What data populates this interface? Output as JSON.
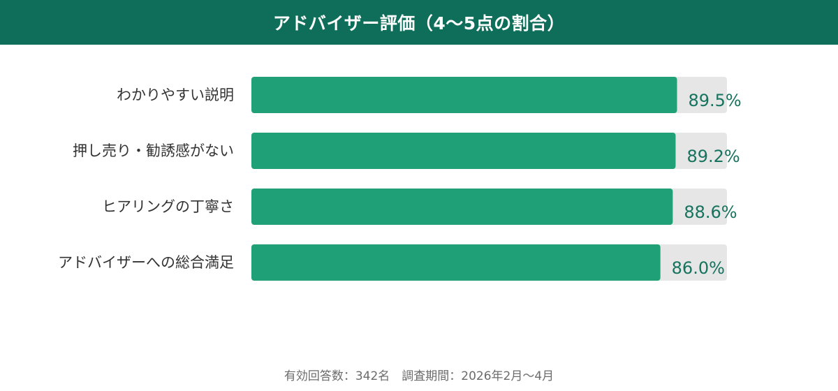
{
  "header": {
    "title": "アドバイザー評価（4〜5点の割合）"
  },
  "footer": {
    "note": "有効回答数：342名　調査期間：2026年2月〜4月"
  },
  "colors": {
    "header_bg": "#0f6e59",
    "bar": "#1fa076",
    "track": "#e6e6e6",
    "value_text": "#15735e"
  },
  "chart_data": {
    "type": "bar",
    "orientation": "horizontal",
    "title": "アドバイザー評価（4〜5点の割合）",
    "categories": [
      "わかりやすい説明",
      "押し売り・勧誘感がない",
      "ヒアリングの丁寧さ",
      "アドバイザーへの総合満足"
    ],
    "values": [
      89.5,
      89.2,
      88.6,
      86.0
    ],
    "value_labels": [
      "89.5%",
      "89.2%",
      "88.6%",
      "86.0%"
    ],
    "unit": "%",
    "xlim": [
      0,
      100
    ],
    "grid": false,
    "legend": "none"
  }
}
